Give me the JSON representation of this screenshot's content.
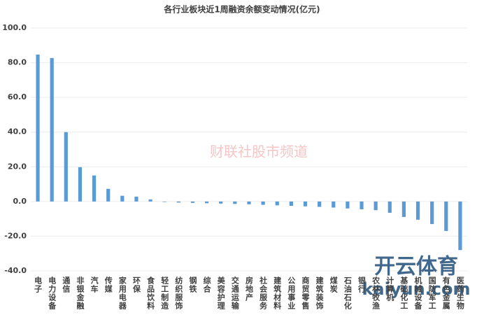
{
  "chart_data": {
    "type": "bar",
    "title": "各行业板块近1周融资余额变动情况(亿元)",
    "categories": [
      "电子",
      "电力设备",
      "通信",
      "非银金融",
      "汽车",
      "传媒",
      "家用电器",
      "环保",
      "食品饮料",
      "轻工制造",
      "纺织服饰",
      "钢铁",
      "综合",
      "美容护理",
      "交通运输",
      "房地产",
      "社会服务",
      "建筑材料",
      "公用事业",
      "商贸零售",
      "建筑装饰",
      "煤炭",
      "石油石化",
      "银行",
      "农林牧渔",
      "计算机",
      "基础化工",
      "机械设备",
      "国防军工",
      "有色金属",
      "医药生物"
    ],
    "values": [
      84.7,
      82.7,
      40,
      19.8,
      15,
      7.3,
      3.3,
      2.8,
      1.2,
      -0.3,
      -0.6,
      -0.8,
      -1,
      -1.2,
      -1.4,
      -1.6,
      -1.9,
      -2.2,
      -2.5,
      -2.8,
      -3.1,
      -3.5,
      -4,
      -4.5,
      -5,
      -6.5,
      -8.9,
      -10.5,
      -13,
      -17,
      -28
    ],
    "color": "#5b9bd5",
    "ylim": [
      -40,
      100
    ],
    "yticks": [
      {
        "value": -40,
        "label": "-40.0"
      },
      {
        "value": -20,
        "label": "-20.0"
      },
      {
        "value": 0,
        "label": "0.0"
      },
      {
        "value": 20,
        "label": "20.0"
      },
      {
        "value": 40,
        "label": "40.0"
      },
      {
        "value": 60,
        "label": "60.0"
      },
      {
        "value": 80,
        "label": "80.0"
      },
      {
        "value": 100,
        "label": "100.0"
      }
    ],
    "grid": true,
    "watermarks": [
      "财联社股市频道",
      "开云体育",
      "kaiyun.com"
    ]
  }
}
